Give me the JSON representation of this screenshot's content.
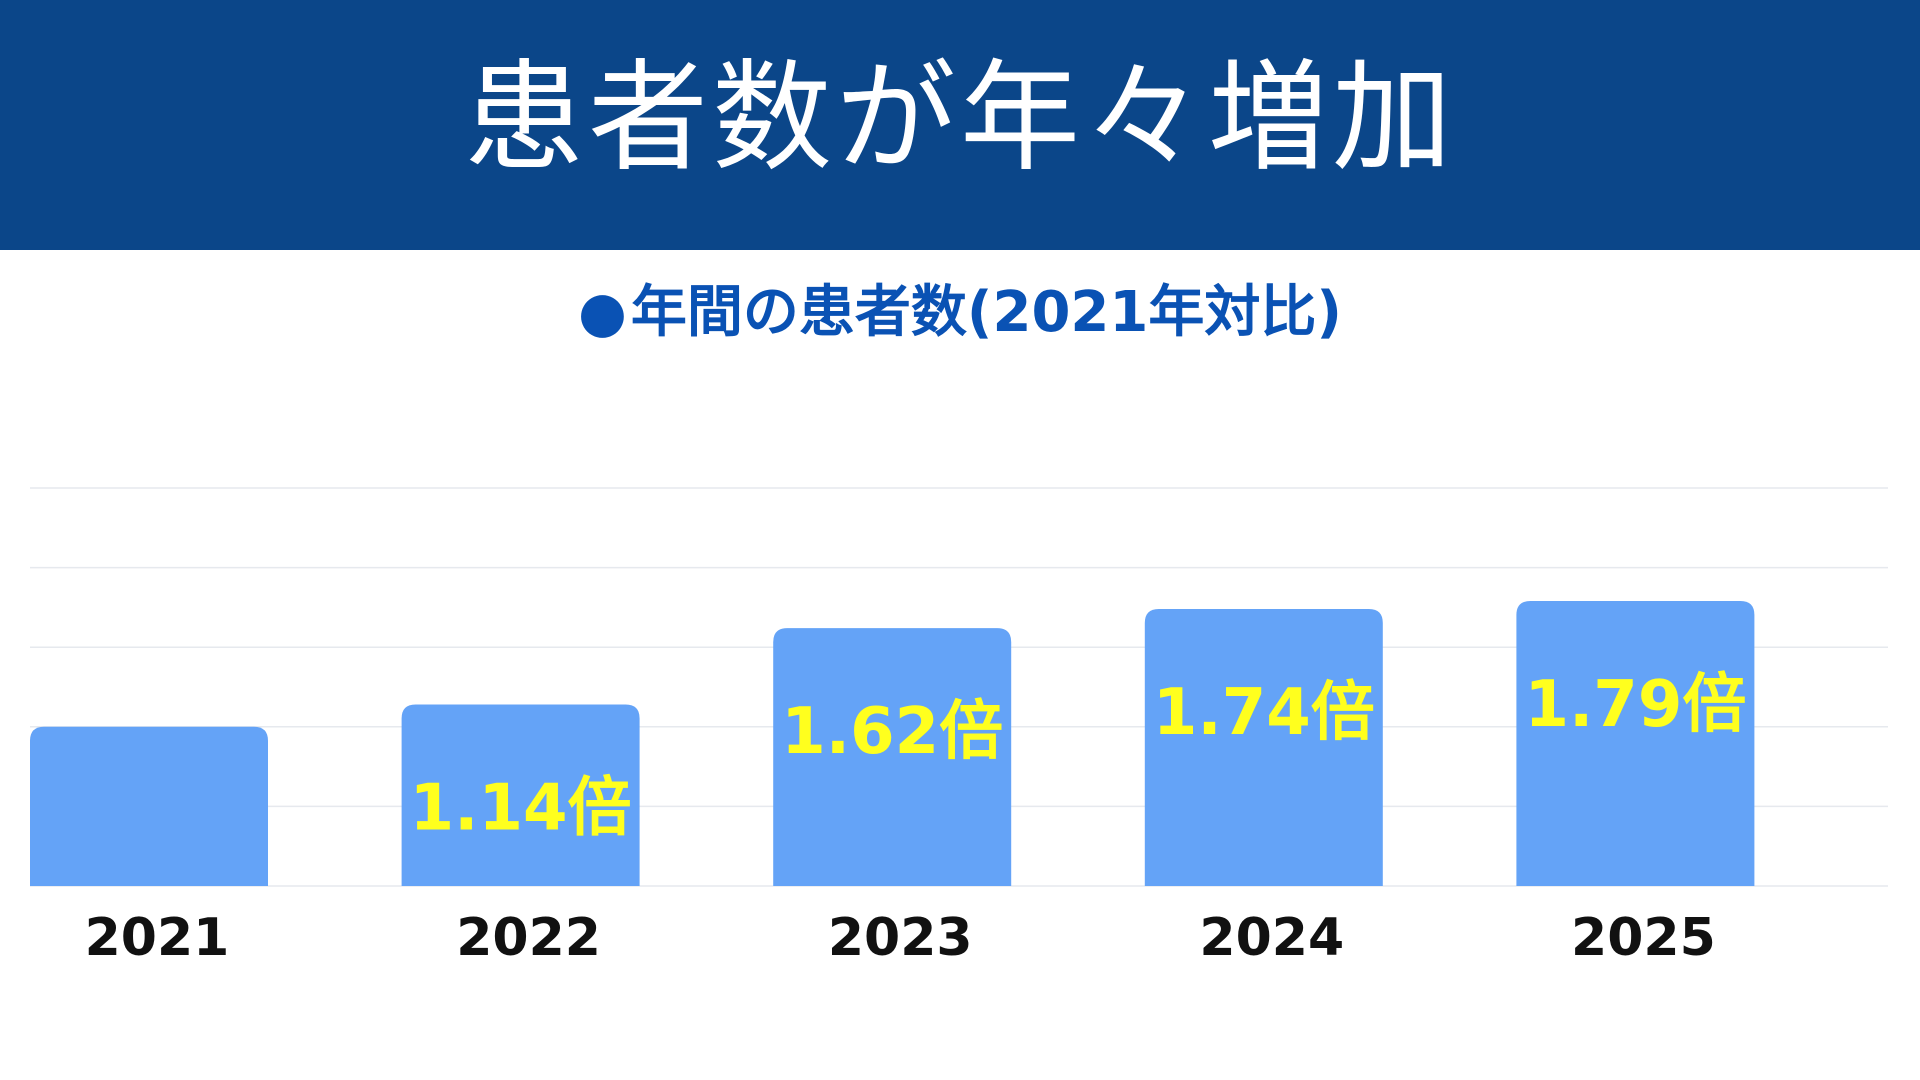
{
  "header": {
    "title": "患者数が年々増加",
    "background_color": "#0b4689",
    "text_color": "#ffffff"
  },
  "subtitle": {
    "bullet": "●",
    "text": "年間の患者数(2021年対比)",
    "color": "#0a52b4"
  },
  "chart_data": {
    "type": "bar",
    "title": "年間の患者数(2021年対比)",
    "categories": [
      "2021",
      "2022",
      "2023",
      "2024",
      "2025"
    ],
    "values": [
      1.0,
      1.14,
      1.62,
      1.74,
      1.79
    ],
    "data_labels": [
      "",
      "1.14倍",
      "1.62倍",
      "1.74倍",
      "1.79倍"
    ],
    "xlabel": "",
    "ylabel": "",
    "ylim": [
      0,
      2.5
    ],
    "grid": true,
    "legend": "none",
    "bar_color": "#64a3f7",
    "label_color": "#ffff1e"
  }
}
